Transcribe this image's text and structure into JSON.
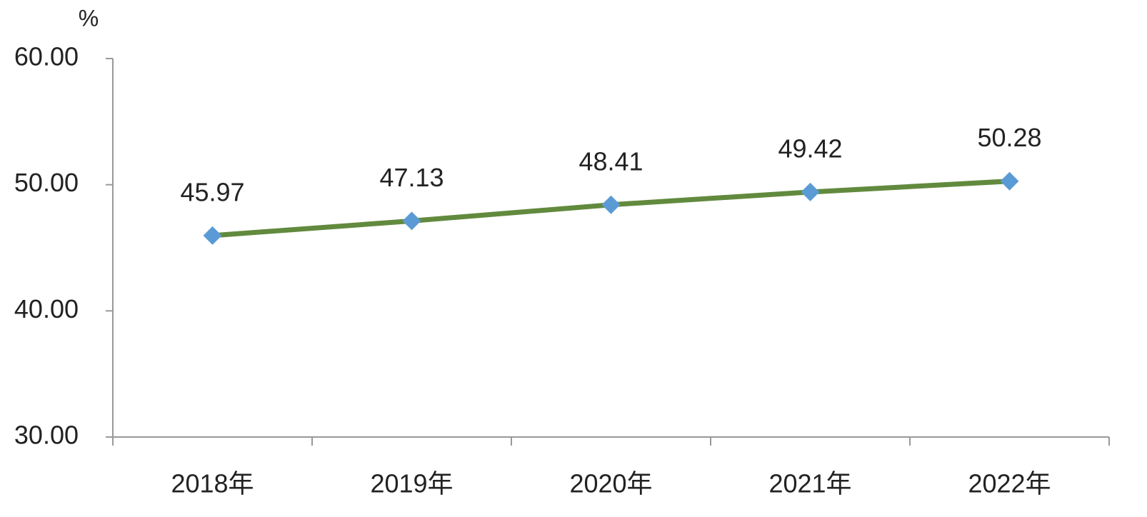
{
  "chart_data": {
    "type": "line",
    "ylabel": "%",
    "categories": [
      "2018年",
      "2019年",
      "2020年",
      "2021年",
      "2022年"
    ],
    "values": [
      45.97,
      47.13,
      48.41,
      49.42,
      50.28
    ],
    "color": "#628a3e",
    "marker_color": "#5b9bd5",
    "ylim": [
      30,
      60
    ],
    "yticks": [
      {
        "value": 30,
        "label": "30.00"
      },
      {
        "value": 40,
        "label": "40.00"
      },
      {
        "value": 50,
        "label": "50.00"
      },
      {
        "value": 60,
        "label": "60.00"
      }
    ]
  }
}
